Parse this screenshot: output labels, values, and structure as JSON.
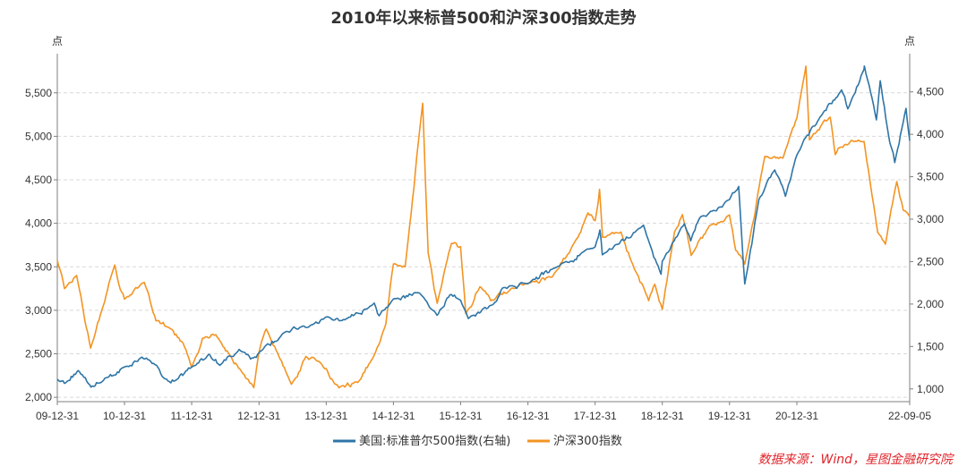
{
  "chart_data": {
    "type": "line",
    "title": "2010年以来标普500和沪深300指数走势",
    "left_axis": {
      "unit": "点",
      "ylim": [
        1950,
        5950
      ],
      "ticks": [
        2000,
        2500,
        3000,
        3500,
        4000,
        4500,
        5000,
        5500
      ],
      "tick_labels": [
        "2,000",
        "2,500",
        "3,000",
        "3,500",
        "4,000",
        "4,500",
        "5,000",
        "5,500"
      ]
    },
    "right_axis": {
      "unit": "点",
      "ylim": [
        850,
        4950
      ],
      "ticks": [
        1000,
        1500,
        2000,
        2500,
        3000,
        3500,
        4000,
        4500
      ],
      "tick_labels": [
        "1,000",
        "1,500",
        "2,000",
        "2,500",
        "3,000",
        "3,500",
        "4,000",
        "4,500"
      ]
    },
    "x_axis": {
      "range": [
        "2009-12-31",
        "2022-09-05"
      ],
      "tick_dates": [
        "2009-12-31",
        "2010-12-31",
        "2011-12-31",
        "2012-12-31",
        "2013-12-31",
        "2014-12-31",
        "2015-12-31",
        "2016-12-31",
        "2017-12-31",
        "2018-12-31",
        "2019-12-31",
        "2020-12-31",
        "2022-09-05"
      ],
      "tick_labels": [
        "09-12-31",
        "10-12-31",
        "11-12-31",
        "12-12-31",
        "13-12-31",
        "14-12-31",
        "15-12-31",
        "16-12-31",
        "17-12-31",
        "18-12-31",
        "19-12-31",
        "20-12-31",
        "22-09-05"
      ]
    },
    "grid": "horizontal-dashed",
    "legend_position": "bottom",
    "series": [
      {
        "name": "美国:标准普尔500指数(右轴)",
        "axis": "right",
        "color": "#2e75a6",
        "points": [
          [
            "2009-12-31",
            1115
          ],
          [
            "2010-02-08",
            1065
          ],
          [
            "2010-04-23",
            1217
          ],
          [
            "2010-07-02",
            1022
          ],
          [
            "2010-09-15",
            1125
          ],
          [
            "2010-12-31",
            1258
          ],
          [
            "2011-04-29",
            1363
          ],
          [
            "2011-08-08",
            1119
          ],
          [
            "2011-10-03",
            1099
          ],
          [
            "2011-12-31",
            1258
          ],
          [
            "2012-04-01",
            1408
          ],
          [
            "2012-06-01",
            1278
          ],
          [
            "2012-09-14",
            1465
          ],
          [
            "2012-11-15",
            1353
          ],
          [
            "2012-12-31",
            1426
          ],
          [
            "2013-05-21",
            1669
          ],
          [
            "2013-09-18",
            1725
          ],
          [
            "2013-12-31",
            1848
          ],
          [
            "2014-04-11",
            1815
          ],
          [
            "2014-09-18",
            2011
          ],
          [
            "2014-10-15",
            1862
          ],
          [
            "2014-12-31",
            2059
          ],
          [
            "2015-05-21",
            2131
          ],
          [
            "2015-08-25",
            1867
          ],
          [
            "2015-11-03",
            2109
          ],
          [
            "2015-12-31",
            2044
          ],
          [
            "2016-02-11",
            1829
          ],
          [
            "2016-06-27",
            2000
          ],
          [
            "2016-08-15",
            2190
          ],
          [
            "2016-12-31",
            2239
          ],
          [
            "2017-06-01",
            2430
          ],
          [
            "2017-12-31",
            2674
          ],
          [
            "2018-01-26",
            2873
          ],
          [
            "2018-02-08",
            2581
          ],
          [
            "2018-09-20",
            2930
          ],
          [
            "2018-12-24",
            2351
          ],
          [
            "2018-12-31",
            2507
          ],
          [
            "2019-04-30",
            2946
          ],
          [
            "2019-06-03",
            2744
          ],
          [
            "2019-07-26",
            3025
          ],
          [
            "2019-12-31",
            3231
          ],
          [
            "2020-02-19",
            3386
          ],
          [
            "2020-03-23",
            2237
          ],
          [
            "2020-06-08",
            3232
          ],
          [
            "2020-09-02",
            3580
          ],
          [
            "2020-10-30",
            3270
          ],
          [
            "2020-12-31",
            3756
          ],
          [
            "2021-04-30",
            4181
          ],
          [
            "2021-08-31",
            4523
          ],
          [
            "2021-10-04",
            4300
          ],
          [
            "2021-12-31",
            4766
          ],
          [
            "2022-01-03",
            4797
          ],
          [
            "2022-03-08",
            4170
          ],
          [
            "2022-03-29",
            4631
          ],
          [
            "2022-05-20",
            3901
          ],
          [
            "2022-06-16",
            3667
          ],
          [
            "2022-08-16",
            4305
          ],
          [
            "2022-09-05",
            3924
          ]
        ]
      },
      {
        "name": "沪深300指数",
        "axis": "left",
        "color": "#f39423",
        "points": [
          [
            "2009-12-31",
            3575
          ],
          [
            "2010-02-08",
            3250
          ],
          [
            "2010-04-15",
            3400
          ],
          [
            "2010-06-30",
            2565
          ],
          [
            "2010-08-30",
            3000
          ],
          [
            "2010-11-08",
            3520
          ],
          [
            "2010-11-30",
            3300
          ],
          [
            "2010-12-31",
            3128
          ],
          [
            "2011-04-18",
            3320
          ],
          [
            "2011-06-20",
            2880
          ],
          [
            "2011-08-30",
            2800
          ],
          [
            "2011-11-15",
            2620
          ],
          [
            "2011-12-31",
            2345
          ],
          [
            "2012-02-28",
            2680
          ],
          [
            "2012-05-10",
            2720
          ],
          [
            "2012-09-26",
            2300
          ],
          [
            "2012-12-03",
            2110
          ],
          [
            "2012-12-31",
            2522
          ],
          [
            "2013-02-08",
            2785
          ],
          [
            "2013-06-25",
            2150
          ],
          [
            "2013-09-12",
            2470
          ],
          [
            "2013-11-28",
            2400
          ],
          [
            "2013-12-31",
            2330
          ],
          [
            "2014-03-10",
            2110
          ],
          [
            "2014-06-20",
            2170
          ],
          [
            "2014-09-10",
            2450
          ],
          [
            "2014-11-20",
            2840
          ],
          [
            "2014-12-31",
            3533
          ],
          [
            "2015-03-05",
            3500
          ],
          [
            "2015-06-08",
            5380
          ],
          [
            "2015-07-08",
            3660
          ],
          [
            "2015-08-26",
            3080
          ],
          [
            "2015-11-12",
            3770
          ],
          [
            "2015-12-31",
            3731
          ],
          [
            "2016-01-28",
            2960
          ],
          [
            "2016-04-14",
            3270
          ],
          [
            "2016-06-12",
            3110
          ],
          [
            "2016-09-30",
            3250
          ],
          [
            "2016-12-31",
            3310
          ],
          [
            "2017-05-10",
            3380
          ],
          [
            "2017-09-29",
            3840
          ],
          [
            "2017-11-22",
            4120
          ],
          [
            "2017-12-31",
            4030
          ],
          [
            "2018-01-24",
            4390
          ],
          [
            "2018-02-09",
            3840
          ],
          [
            "2018-05-20",
            3900
          ],
          [
            "2018-07-31",
            3480
          ],
          [
            "2018-10-18",
            3110
          ],
          [
            "2018-11-20",
            3300
          ],
          [
            "2018-12-31",
            3010
          ],
          [
            "2019-03-07",
            3900
          ],
          [
            "2019-04-19",
            4100
          ],
          [
            "2019-06-06",
            3630
          ],
          [
            "2019-09-12",
            3970
          ],
          [
            "2019-12-31",
            4096
          ],
          [
            "2020-02-03",
            3690
          ],
          [
            "2020-03-23",
            3530
          ],
          [
            "2020-07-10",
            4770
          ],
          [
            "2020-10-16",
            4750
          ],
          [
            "2020-12-31",
            5211
          ],
          [
            "2021-02-18",
            5807
          ],
          [
            "2021-03-09",
            4960
          ],
          [
            "2021-06-30",
            5220
          ],
          [
            "2021-07-28",
            4790
          ],
          [
            "2021-09-15",
            4900
          ],
          [
            "2021-12-31",
            4940
          ],
          [
            "2022-03-15",
            3900
          ],
          [
            "2022-04-26",
            3760
          ],
          [
            "2022-06-27",
            4480
          ],
          [
            "2022-08-01",
            4150
          ],
          [
            "2022-09-05",
            4080
          ]
        ]
      }
    ],
    "source": "数据来源：Wind，星图金融研究院"
  }
}
